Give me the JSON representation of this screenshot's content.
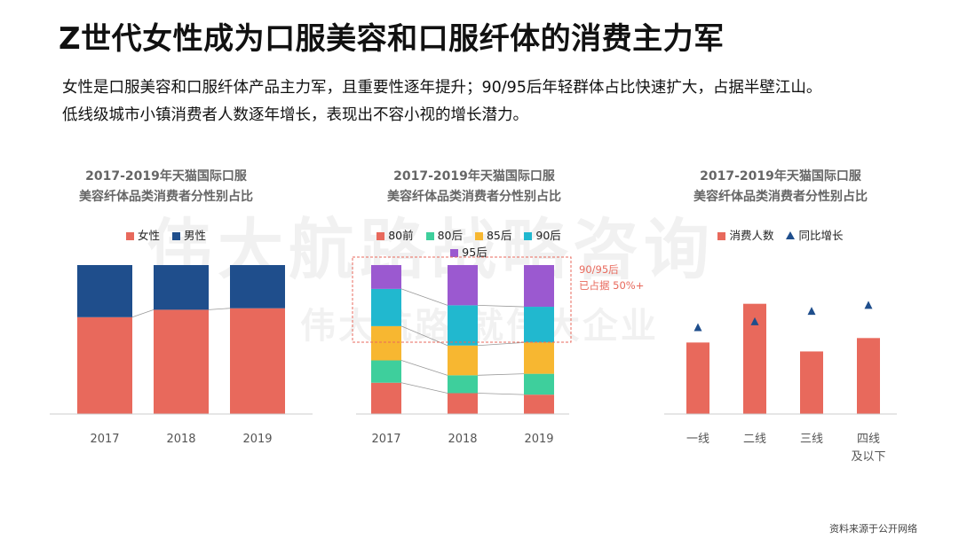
{
  "page": {
    "title": "Z世代女性成为口服美容和口服纤体的消费主力军",
    "subtitle_line1": "女性是口服美容和口服纤体产品主力军，且重要性逐年提升；90/95后年轻群体占比快速扩大，占据半壁江山。",
    "subtitle_line2": "低线级城市小镇消费者人数逐年增长，表现出不容小视的增长潜力。",
    "watermark_line1": "伟大航路战略咨询",
    "watermark_line2": "伟大航路 就伟大企业",
    "source": "资料来源于公开网络"
  },
  "colors": {
    "female": "#e8695c",
    "male": "#1f4e8c",
    "g80pre": "#e8695c",
    "g80post": "#3ecf9c",
    "g85": "#f7b731",
    "g90": "#21b8cf",
    "g95": "#9b59d0",
    "tier_bar": "#e8695c",
    "tier_marker": "#1f4e8c",
    "annotation": "#e8695c"
  },
  "chart_data": [
    {
      "type": "bar",
      "stacked": true,
      "title_line1": "2017-2019年天猫国际口服",
      "title_line2": "美容纤体品类消费者分性别占比",
      "categories": [
        "2017",
        "2018",
        "2019"
      ],
      "series": [
        {
          "name": "女性",
          "values": [
            65,
            70,
            71
          ]
        },
        {
          "name": "男性",
          "values": [
            35,
            30,
            29
          ]
        }
      ],
      "ylim": [
        0,
        100
      ],
      "legend": "top"
    },
    {
      "type": "bar",
      "stacked": true,
      "title_line1": "2017-2019年天猫国际口服",
      "title_line2": "美容纤体品类消费者分性别占比",
      "categories": [
        "2017",
        "2018",
        "2019"
      ],
      "series": [
        {
          "name": "80前",
          "values": [
            21,
            14,
            13
          ]
        },
        {
          "name": "80后",
          "values": [
            15,
            12,
            14
          ]
        },
        {
          "name": "85后",
          "values": [
            23,
            20,
            21
          ]
        },
        {
          "name": "90后",
          "values": [
            25,
            27,
            24
          ]
        },
        {
          "name": "95后",
          "values": [
            16,
            27,
            28
          ]
        }
      ],
      "ylim": [
        0,
        100
      ],
      "legend": "top",
      "annotation_line1": "90/95后",
      "annotation_line2": "已占据 50%+"
    },
    {
      "type": "bar",
      "title_line1": "2017-2019年天猫国际口服",
      "title_line2": "美容纤体品类消费者分性别占比",
      "categories": [
        "一线",
        "二线",
        "三线",
        "四线"
      ],
      "category_sublabels": [
        "",
        "",
        "",
        "及以下"
      ],
      "series": [
        {
          "name": "消费人数",
          "kind": "bar",
          "values": [
            48,
            74,
            42,
            51
          ]
        },
        {
          "name": "同比增长",
          "kind": "marker",
          "values": [
            58,
            62,
            69,
            73
          ]
        }
      ],
      "ylim": [
        0,
        100
      ],
      "legend": "top"
    }
  ]
}
